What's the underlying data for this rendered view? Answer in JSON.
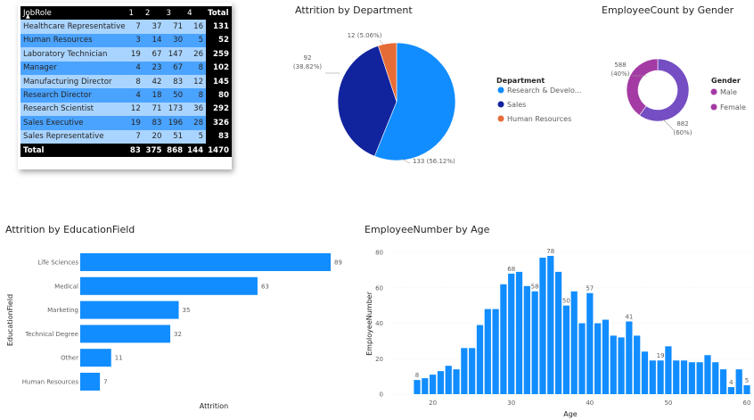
{
  "matrix": {
    "headers": [
      "JobRole",
      "1",
      "2",
      "3",
      "4",
      "Total"
    ],
    "rows": [
      {
        "role": "Healthcare Representative",
        "v": [
          7,
          37,
          71,
          16
        ],
        "total": 131
      },
      {
        "role": "Human Resources",
        "v": [
          3,
          14,
          30,
          5
        ],
        "total": 52
      },
      {
        "role": "Laboratory Technician",
        "v": [
          19,
          67,
          147,
          26
        ],
        "total": 259
      },
      {
        "role": "Manager",
        "v": [
          4,
          23,
          67,
          8
        ],
        "total": 102
      },
      {
        "role": "Manufacturing Director",
        "v": [
          8,
          42,
          83,
          12
        ],
        "total": 145
      },
      {
        "role": "Research Director",
        "v": [
          4,
          18,
          50,
          8
        ],
        "total": 80
      },
      {
        "role": "Research Scientist",
        "v": [
          12,
          71,
          173,
          36
        ],
        "total": 292
      },
      {
        "role": "Sales Executive",
        "v": [
          19,
          83,
          196,
          28
        ],
        "total": 326
      },
      {
        "role": "Sales Representative",
        "v": [
          7,
          20,
          51,
          5
        ],
        "total": 83
      }
    ],
    "footer": {
      "label": "Total",
      "v": [
        83,
        375,
        868,
        144
      ],
      "total": 1470
    },
    "sort_icon": "sort-up-icon"
  },
  "chart_data": [
    {
      "type": "pie",
      "title": "Attrition by Department",
      "legend_title": "Department",
      "legend_position": "right",
      "slices": [
        {
          "label": "Research & Develo...",
          "value": 133,
          "pct_label": "133 (56.12%)",
          "color": "#118dff"
        },
        {
          "label": "Sales",
          "value": 92,
          "pct_label": "92 (38.82%)",
          "color": "#12239e"
        },
        {
          "label": "Human Resources",
          "value": 12,
          "pct_label": "12 (5.06%)",
          "color": "#e66c37"
        }
      ]
    },
    {
      "type": "pie",
      "subtype": "donut",
      "title": "EmployeeCount by Gender",
      "legend_title": "Gender",
      "legend_position": "right",
      "slices": [
        {
          "label": "Male",
          "value": 882,
          "pct_label": "882 (60%)",
          "color": "#744ec2"
        },
        {
          "label": "Female",
          "value": 588,
          "pct_label": "588 (40%)",
          "color": "#a43ba4"
        }
      ]
    },
    {
      "type": "bar",
      "orientation": "horizontal",
      "title": "Attrition by EducationField",
      "xlabel": "Attrition",
      "ylabel": "EducationField",
      "categories": [
        "Life Sciences",
        "Medical",
        "Marketing",
        "Technical Degree",
        "Other",
        "Human Resources"
      ],
      "values": [
        89,
        63,
        35,
        32,
        11,
        7
      ],
      "xlim": [
        0,
        95
      ],
      "color": "#118dff"
    },
    {
      "type": "bar",
      "title": "EmployeeNumber by Age",
      "xlabel": "Age",
      "ylabel": "EmployeeNumber",
      "x": [
        18,
        19,
        20,
        21,
        22,
        23,
        24,
        25,
        26,
        27,
        28,
        29,
        30,
        31,
        32,
        33,
        34,
        35,
        36,
        37,
        38,
        39,
        40,
        41,
        42,
        43,
        44,
        45,
        46,
        47,
        48,
        49,
        50,
        51,
        52,
        53,
        54,
        55,
        56,
        57,
        58,
        59,
        60
      ],
      "values": [
        8,
        9,
        11,
        13,
        16,
        14,
        26,
        26,
        39,
        48,
        48,
        62,
        68,
        69,
        61,
        58,
        77,
        78,
        69,
        50,
        58,
        40,
        57,
        40,
        42,
        33,
        32,
        41,
        33,
        24,
        19,
        19,
        27,
        19,
        19,
        18,
        18,
        22,
        18,
        14,
        4,
        14,
        5
      ],
      "data_labels": {
        "18": 8,
        "30": 68,
        "33": 58,
        "35": 78,
        "37": 50,
        "40": 57,
        "45": 41,
        "49": 19,
        "58": 4,
        "60": 5
      },
      "xticks": [
        20,
        30,
        40,
        50,
        60
      ],
      "yticks": [
        0,
        20,
        40,
        60,
        80
      ],
      "ylim": [
        0,
        85
      ],
      "color": "#118dff"
    }
  ]
}
